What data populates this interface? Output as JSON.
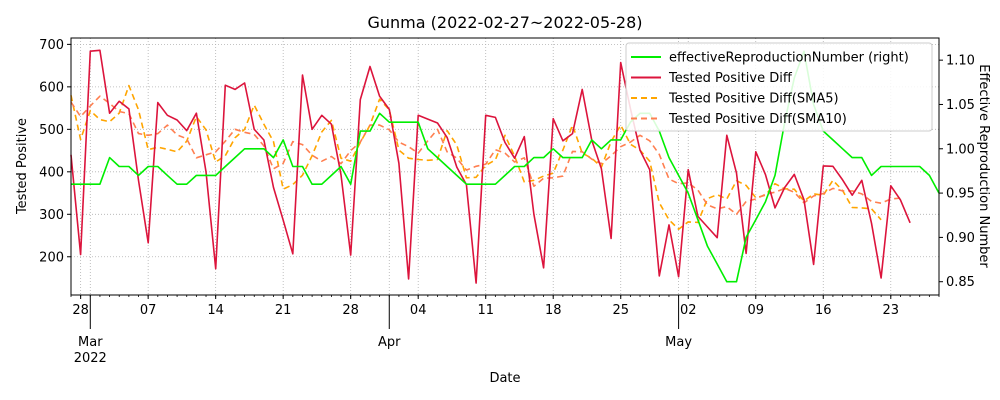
{
  "chart_data": {
    "type": "line",
    "title": "Gunma (2022-02-27~2022-05-28)",
    "xlabel": "Date",
    "ylabel_left": "Tested Positive",
    "ylabel_right": "Effective Reproduction Number",
    "x_start": "2022-02-27",
    "x_end": "2022-05-28",
    "ylim_left": [
      110,
      715
    ],
    "ylim_right": [
      0.835,
      1.125
    ],
    "yticks_left": [
      200,
      300,
      400,
      500,
      600,
      700
    ],
    "yticks_right": [
      0.85,
      0.9,
      0.95,
      1.0,
      1.05,
      1.1
    ],
    "xticks": [
      {
        "date": "2022-02-28",
        "label": "28"
      },
      {
        "date": "2022-03-07",
        "label": "07"
      },
      {
        "date": "2022-03-14",
        "label": "14"
      },
      {
        "date": "2022-03-21",
        "label": "21"
      },
      {
        "date": "2022-03-28",
        "label": "28"
      },
      {
        "date": "2022-04-04",
        "label": "04"
      },
      {
        "date": "2022-04-11",
        "label": "11"
      },
      {
        "date": "2022-04-18",
        "label": "18"
      },
      {
        "date": "2022-04-25",
        "label": "25"
      },
      {
        "date": "2022-05-02",
        "label": "02"
      },
      {
        "date": "2022-05-09",
        "label": "09"
      },
      {
        "date": "2022-05-16",
        "label": "16"
      },
      {
        "date": "2022-05-23",
        "label": "23"
      }
    ],
    "month_labels": [
      {
        "date": "2022-03-01",
        "label": "Mar",
        "year": "2022"
      },
      {
        "date": "2022-04-01",
        "label": "Apr",
        "year": ""
      },
      {
        "date": "2022-05-01",
        "label": "May",
        "year": ""
      }
    ],
    "grid": true,
    "legend_position": "top-right",
    "series": [
      {
        "name": "effectiveReproductionNumber (right)",
        "axis": "right",
        "color": "#00ee00",
        "dash": "solid",
        "values": [
          0.96,
          0.96,
          0.96,
          0.96,
          0.99,
          0.98,
          0.98,
          0.97,
          0.98,
          0.98,
          0.97,
          0.96,
          0.96,
          0.97,
          0.97,
          0.97,
          0.98,
          0.99,
          1.0,
          1.0,
          1.0,
          0.99,
          1.01,
          0.98,
          0.98,
          0.96,
          0.96,
          0.97,
          0.98,
          0.96,
          1.02,
          1.02,
          1.04,
          1.03,
          1.03,
          1.03,
          1.03,
          1.0,
          0.99,
          0.98,
          0.97,
          0.96,
          0.96,
          0.96,
          0.96,
          0.97,
          0.98,
          0.98,
          0.99,
          0.99,
          1.0,
          0.99,
          0.99,
          0.99,
          1.01,
          1.0,
          1.01,
          1.01,
          1.03,
          1.04,
          1.04,
          1.02,
          0.99,
          0.97,
          0.95,
          0.92,
          0.89,
          0.87,
          0.85,
          0.85,
          0.9,
          0.92,
          0.94,
          0.97,
          1.03,
          1.08,
          1.11,
          1.05,
          1.02,
          1.01,
          1.0,
          0.99,
          0.99,
          0.97,
          0.98,
          0.98,
          0.98,
          0.98,
          0.98,
          0.97,
          0.95
        ]
      },
      {
        "name": "Tested Positive Diff",
        "axis": "left",
        "color": "#dc143c",
        "dash": "solid",
        "values": [
          440,
          205,
          684,
          686,
          538,
          566,
          548,
          380,
          233,
          563,
          533,
          522,
          497,
          538,
          400,
          172,
          604,
          594,
          609,
          500,
          475,
          363,
          286,
          207,
          628,
          500,
          533,
          512,
          393,
          204,
          570,
          648,
          578,
          547,
          420,
          148,
          533,
          524,
          515,
          481,
          411,
          370,
          138,
          533,
          528,
          469,
          432,
          483,
          300,
          174,
          525,
          473,
          490,
          594,
          474,
          407,
          243,
          657,
          549,
          451,
          405,
          155,
          275,
          153,
          405,
          295,
          270,
          245,
          486,
          397,
          208,
          447,
          394,
          315,
          363,
          394,
          334,
          182,
          414,
          413,
          381,
          345,
          380,
          279,
          150,
          367,
          334,
          280
        ]
      },
      {
        "name": "Tested Positive Diff(SMA5)",
        "axis": "left",
        "color": "#ffa500",
        "dash": "6,4",
        "values": [
          580,
          476,
          544,
          523,
          518,
          538,
          603,
          546,
          452,
          458,
          453,
          447,
          472,
          530,
          499,
          423,
          438,
          480,
          500,
          557,
          512,
          471,
          359,
          370,
          392,
          438,
          494,
          521,
          432,
          425,
          469,
          510,
          571,
          546,
          451,
          432,
          429,
          427,
          429,
          497,
          463,
          386,
          387,
          415,
          428,
          486,
          437,
          376,
          380,
          390,
          397,
          451,
          510,
          444,
          432,
          411,
          471,
          510,
          465,
          451,
          425,
          327,
          287,
          265,
          282,
          281,
          337,
          346,
          336,
          379,
          368,
          339,
          345,
          372,
          360,
          359,
          331,
          348,
          345,
          380,
          356,
          316,
          315,
          313,
          287
        ]
      },
      {
        "name": "Tested Positive Diff(SMA10)",
        "axis": "left",
        "color": "#ff7f50",
        "dash": "6,4",
        "values": [
          564,
          530,
          555,
          578,
          561,
          542,
          537,
          490,
          486,
          490,
          510,
          487,
          478,
          433,
          440,
          447,
          472,
          500,
          493,
          488,
          461,
          407,
          420,
          471,
          464,
          439,
          425,
          436,
          419,
          450,
          470,
          510,
          510,
          499,
          470,
          459,
          444,
          473,
          500,
          447,
          432,
          404,
          413,
          418,
          452,
          444,
          423,
          433,
          366,
          385,
          386,
          390,
          448,
          447,
          430,
          419,
          438,
          459,
          470,
          486,
          473,
          441,
          383,
          372,
          374,
          357,
          322,
          313,
          318,
          300,
          330,
          336,
          347,
          352,
          361,
          352,
          327,
          343,
          349,
          361,
          355,
          355,
          348,
          330,
          326,
          336,
          338
        ]
      }
    ]
  }
}
